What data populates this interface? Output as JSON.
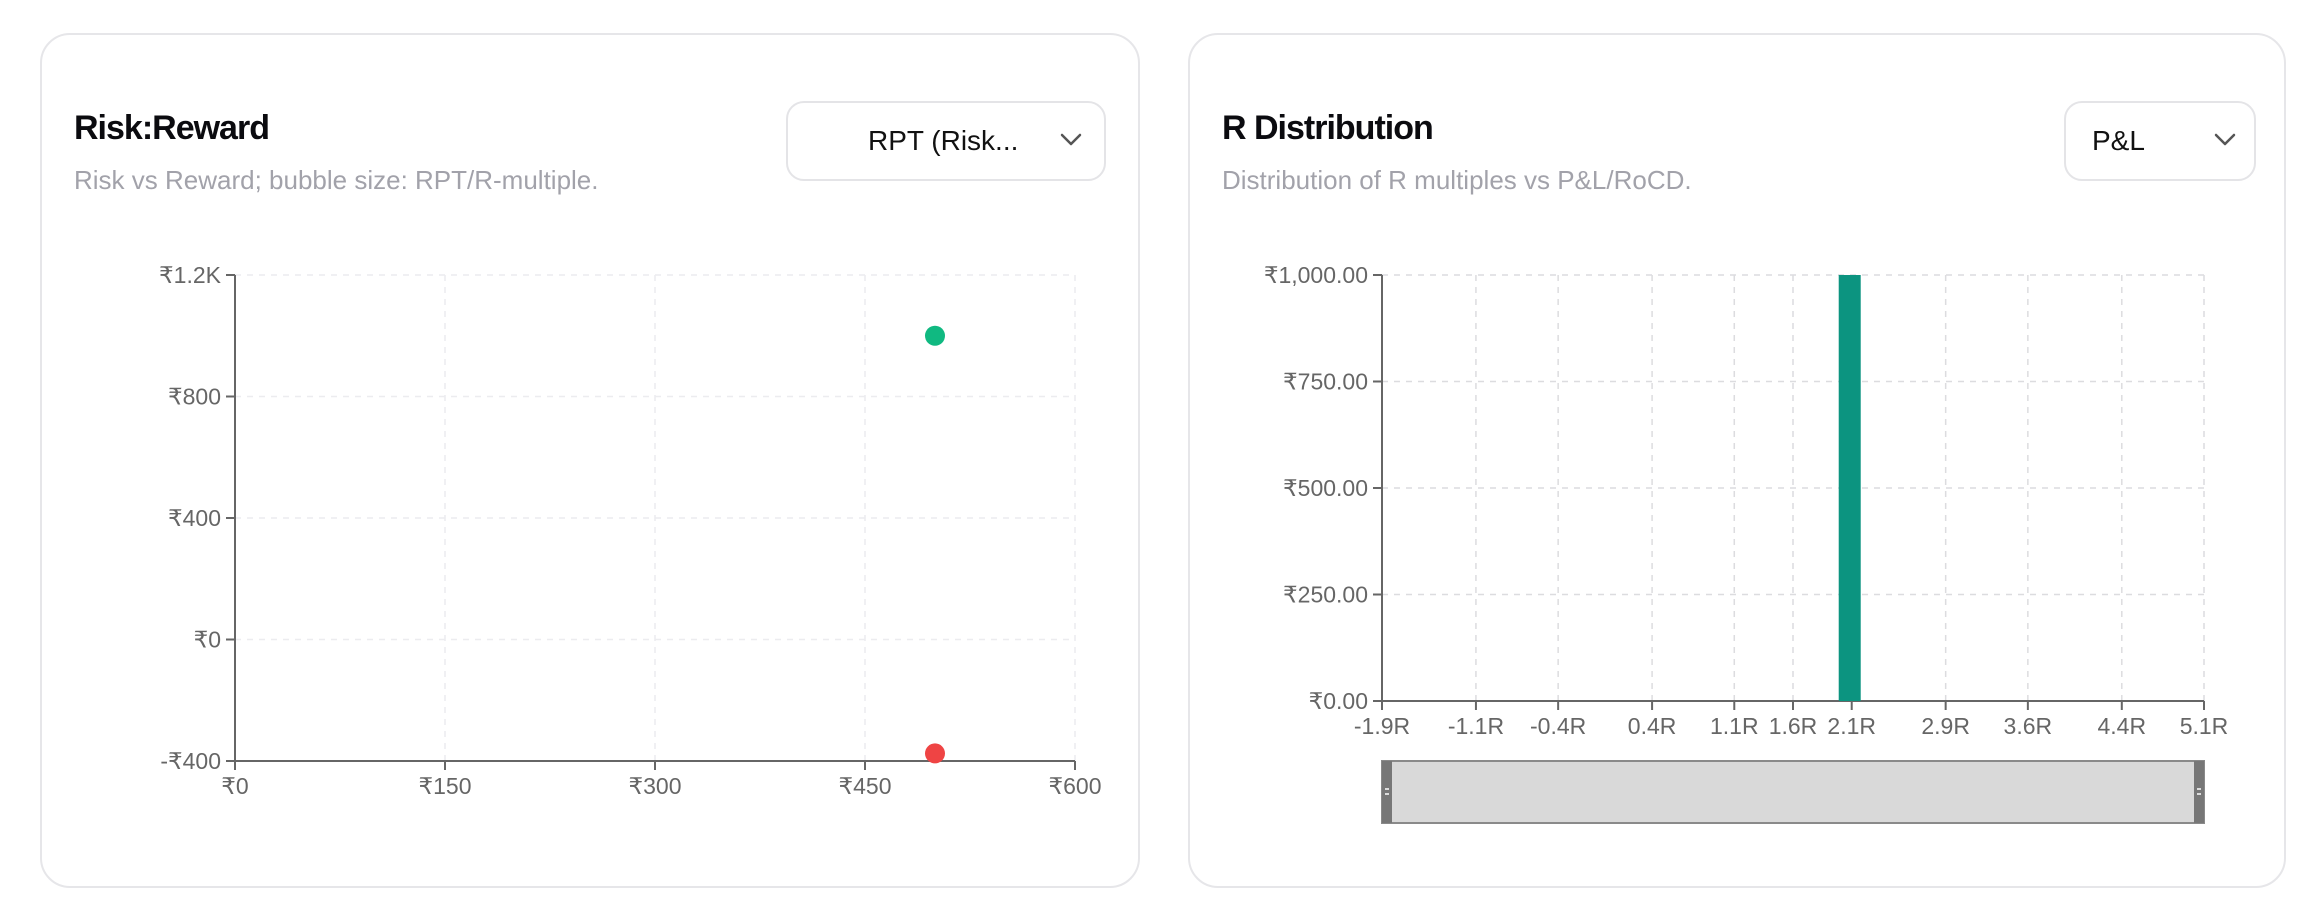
{
  "chart_data": [
    {
      "type": "scatter",
      "title": "Risk:Reward",
      "subtitle": "Risk vs Reward; bubble size: RPT/R-multiple.",
      "select_value": "RPT (Risk...",
      "xlim": [
        0,
        600
      ],
      "ylim": [
        -400,
        1200
      ],
      "x_ticks": [
        {
          "value": 0,
          "label": "₹0"
        },
        {
          "value": 150,
          "label": "₹150"
        },
        {
          "value": 300,
          "label": "₹300"
        },
        {
          "value": 450,
          "label": "₹450"
        },
        {
          "value": 600,
          "label": "₹600"
        }
      ],
      "y_ticks": [
        {
          "value": 1200,
          "label": "₹1.2K"
        },
        {
          "value": 800,
          "label": "₹800"
        },
        {
          "value": 400,
          "label": "₹400"
        },
        {
          "value": 0,
          "label": "₹0"
        },
        {
          "value": -400,
          "label": "-₹400"
        }
      ],
      "grid": true,
      "points": [
        {
          "x": 500,
          "y": 1000,
          "color": "#10b981"
        },
        {
          "x": 500,
          "y": -375,
          "color": "#ef4444"
        }
      ]
    },
    {
      "type": "bar",
      "title": "R Distribution",
      "subtitle": "Distribution of R multiples vs P&L/RoCD.",
      "select_value": "P&L",
      "xlim": [
        -1.9,
        5.1
      ],
      "ylim": [
        0,
        1000
      ],
      "x_ticks": [
        {
          "value": -1.9,
          "label": "-1.9R"
        },
        {
          "value": -1.1,
          "label": "-1.1R"
        },
        {
          "value": -0.4,
          "label": "-0.4R"
        },
        {
          "value": 0.4,
          "label": "0.4R"
        },
        {
          "value": 1.1,
          "label": "1.1R"
        },
        {
          "value": 1.6,
          "label": "1.6R"
        },
        {
          "value": 2.1,
          "label": "2.1R"
        },
        {
          "value": 2.9,
          "label": "2.9R"
        },
        {
          "value": 3.6,
          "label": "3.6R"
        },
        {
          "value": 4.4,
          "label": "4.4R"
        },
        {
          "value": 5.1,
          "label": "5.1R"
        }
      ],
      "y_ticks": [
        {
          "value": 1000,
          "label": "₹1,000.00"
        },
        {
          "value": 750,
          "label": "₹750.00"
        },
        {
          "value": 500,
          "label": "₹500.00"
        },
        {
          "value": 250,
          "label": "₹250.00"
        },
        {
          "value": 0,
          "label": "₹0.00"
        }
      ],
      "grid": true,
      "bars": [
        {
          "x": 2.1,
          "value": 1000,
          "color": "#0c9480"
        }
      ],
      "brush": {
        "start": 0,
        "end": 1
      }
    }
  ]
}
